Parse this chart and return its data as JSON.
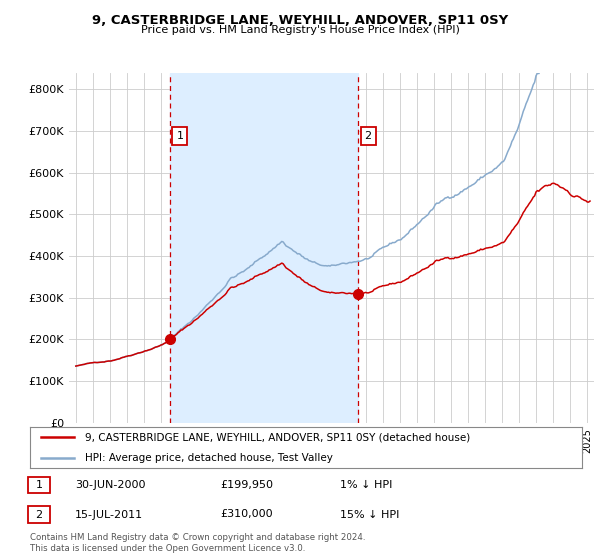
{
  "title": "9, CASTERBRIDGE LANE, WEYHILL, ANDOVER, SP11 0SY",
  "subtitle": "Price paid vs. HM Land Registry's House Price Index (HPI)",
  "ylabel_ticks": [
    "£0",
    "£100K",
    "£200K",
    "£300K",
    "£400K",
    "£500K",
    "£600K",
    "£700K",
    "£800K"
  ],
  "ytick_values": [
    0,
    100000,
    200000,
    300000,
    400000,
    500000,
    600000,
    700000,
    800000
  ],
  "ylim": [
    0,
    840000
  ],
  "xlim_start": 1994.6,
  "xlim_end": 2025.4,
  "sale1_date": 2000.5,
  "sale1_price": 199950,
  "sale2_date": 2011.54,
  "sale2_price": 310000,
  "legend_line1": "9, CASTERBRIDGE LANE, WEYHILL, ANDOVER, SP11 0SY (detached house)",
  "legend_line2": "HPI: Average price, detached house, Test Valley",
  "footer": "Contains HM Land Registry data © Crown copyright and database right 2024.\nThis data is licensed under the Open Government Licence v3.0.",
  "sale_color": "#cc0000",
  "hpi_color": "#88aacc",
  "vline_color": "#cc0000",
  "shade_color": "#ddeeff",
  "background_color": "#ffffff",
  "grid_color": "#cccccc"
}
